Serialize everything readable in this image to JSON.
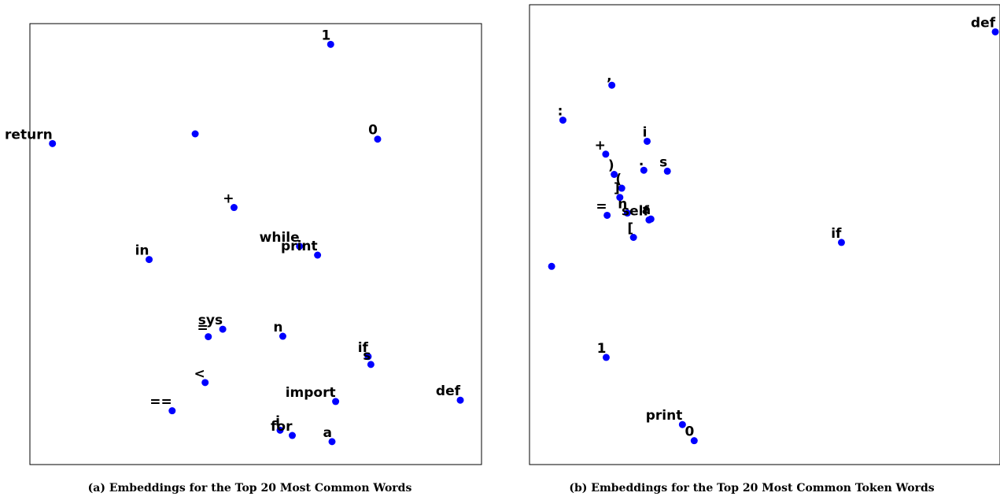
{
  "colors": {
    "marker": "#0000ff",
    "frame": "#000000",
    "label": "#000000"
  },
  "chart_data": [
    {
      "type": "scatter",
      "caption": "(a) Embeddings for the Top 20 Most Common Words",
      "title": "",
      "xlabel": "",
      "ylabel": "",
      "grid": false,
      "axis_ticks": false,
      "xlim": [
        0,
        100
      ],
      "ylim": [
        0,
        100
      ],
      "points": [
        {
          "label": "1",
          "x": 66.6,
          "y": 95.3
        },
        {
          "label": "0",
          "x": 77.0,
          "y": 73.8
        },
        {
          "label": "return",
          "x": 5.0,
          "y": 72.8
        },
        {
          "label": "",
          "x": 36.6,
          "y": 75.0
        },
        {
          "label": "+",
          "x": 45.2,
          "y": 58.3
        },
        {
          "label": "while",
          "x": 59.7,
          "y": 49.5
        },
        {
          "label": "print",
          "x": 63.7,
          "y": 47.5
        },
        {
          "label": "in",
          "x": 26.4,
          "y": 46.5
        },
        {
          "label": "sys",
          "x": 42.7,
          "y": 30.7
        },
        {
          "label": "=",
          "x": 39.5,
          "y": 29.0
        },
        {
          "label": "n",
          "x": 56.0,
          "y": 29.1
        },
        {
          "label": "if",
          "x": 74.9,
          "y": 24.5
        },
        {
          "label": "s",
          "x": 75.5,
          "y": 22.7
        },
        {
          "label": "<",
          "x": 38.8,
          "y": 18.6
        },
        {
          "label": "import",
          "x": 67.7,
          "y": 14.3
        },
        {
          "label": "def",
          "x": 95.3,
          "y": 14.6
        },
        {
          "label": "==",
          "x": 31.5,
          "y": 12.2
        },
        {
          "label": "i",
          "x": 55.4,
          "y": 7.8
        },
        {
          "label": "for",
          "x": 58.1,
          "y": 6.6
        },
        {
          "label": "a",
          "x": 66.9,
          "y": 5.2
        }
      ]
    },
    {
      "type": "scatter",
      "caption": "(b) Embeddings for the Top 20 Most Common Token Words",
      "title": "",
      "xlabel": "",
      "ylabel": "",
      "grid": false,
      "axis_ticks": false,
      "xlim": [
        0,
        100
      ],
      "ylim": [
        0,
        100
      ],
      "points": [
        {
          "label": "def",
          "x": 99.0,
          "y": 94.1
        },
        {
          "label": ",",
          "x": 17.5,
          "y": 82.5
        },
        {
          "label": ":",
          "x": 7.1,
          "y": 74.9
        },
        {
          "label": "i",
          "x": 25.0,
          "y": 70.3
        },
        {
          "label": "+",
          "x": 16.2,
          "y": 67.5
        },
        {
          "label": ")",
          "x": 18.0,
          "y": 63.1
        },
        {
          "label": ".",
          "x": 24.3,
          "y": 64.0
        },
        {
          "label": "s",
          "x": 29.3,
          "y": 63.8
        },
        {
          "label": "(",
          "x": 19.6,
          "y": 60.1
        },
        {
          "label": "]",
          "x": 19.2,
          "y": 58.1
        },
        {
          "label": "=",
          "x": 16.5,
          "y": 54.2
        },
        {
          "label": "n",
          "x": 20.8,
          "y": 54.7
        },
        {
          "label": "self",
          "x": 25.4,
          "y": 53.2
        },
        {
          "label": "a",
          "x": 25.8,
          "y": 53.4
        },
        {
          "label": "[",
          "x": 22.1,
          "y": 49.4
        },
        {
          "label": "if",
          "x": 66.3,
          "y": 48.3
        },
        {
          "label": "",
          "x": 4.7,
          "y": 43.1
        },
        {
          "label": "1",
          "x": 16.3,
          "y": 23.3
        },
        {
          "label": "print",
          "x": 32.5,
          "y": 8.7
        },
        {
          "label": "0",
          "x": 35.0,
          "y": 5.2
        }
      ]
    }
  ]
}
